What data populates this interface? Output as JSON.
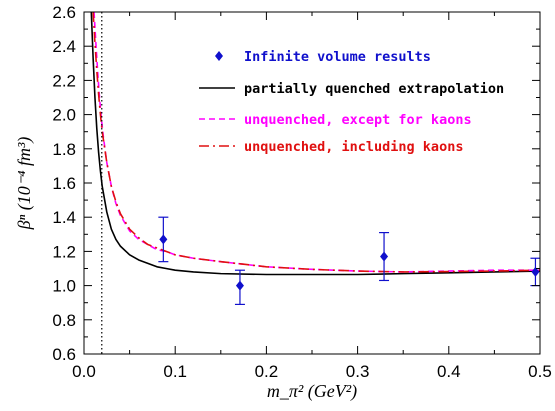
{
  "chart_data": {
    "type": "scatter",
    "xlabel": "m_π² (GeV²)",
    "ylabel": "βⁿ (10⁻⁴ fm³)",
    "xlim": [
      0.0,
      0.5
    ],
    "ylim": [
      0.6,
      2.6
    ],
    "x_ticks": [
      "0.0",
      "0.1",
      "0.2",
      "0.3",
      "0.4",
      "0.5"
    ],
    "y_ticks": [
      "0.6",
      "0.8",
      "1.0",
      "1.2",
      "1.4",
      "1.6",
      "1.8",
      "2.0",
      "2.2",
      "2.4",
      "2.6"
    ],
    "vertical_reference_line_x": 0.0195,
    "grid": false,
    "legend_position": "top-right",
    "series": [
      {
        "name": "Infinite volume results",
        "kind": "points-with-errors",
        "marker": "diamond",
        "color": "#1010cc",
        "x": [
          0.087,
          0.171,
          0.329,
          0.495
        ],
        "y": [
          1.27,
          1.0,
          1.17,
          1.08
        ],
        "y_low": [
          1.14,
          0.89,
          1.03,
          1.0
        ],
        "y_high": [
          1.4,
          1.09,
          1.31,
          1.16
        ]
      },
      {
        "name": "partially quenched extrapolation",
        "kind": "curve",
        "style": "solid",
        "color": "#000000",
        "x": [
          0.008,
          0.01,
          0.012,
          0.014,
          0.016,
          0.018,
          0.02,
          0.025,
          0.03,
          0.035,
          0.04,
          0.05,
          0.06,
          0.07,
          0.08,
          0.09,
          0.1,
          0.12,
          0.15,
          0.2,
          0.25,
          0.3,
          0.35,
          0.4,
          0.45,
          0.5
        ],
        "y": [
          2.6,
          2.33,
          2.1,
          1.92,
          1.78,
          1.67,
          1.58,
          1.43,
          1.33,
          1.27,
          1.23,
          1.18,
          1.15,
          1.13,
          1.11,
          1.1,
          1.09,
          1.08,
          1.07,
          1.065,
          1.065,
          1.065,
          1.07,
          1.075,
          1.08,
          1.085
        ]
      },
      {
        "name": "unquenched, except for kaons",
        "kind": "curve",
        "style": "dashed",
        "color": "#ff00ff",
        "x": [
          0.011,
          0.013,
          0.015,
          0.017,
          0.019,
          0.021,
          0.025,
          0.03,
          0.035,
          0.04,
          0.05,
          0.06,
          0.07,
          0.08,
          0.09,
          0.1,
          0.12,
          0.15,
          0.2,
          0.25,
          0.3,
          0.35,
          0.4,
          0.45,
          0.5
        ],
        "y": [
          2.6,
          2.42,
          2.25,
          2.1,
          1.98,
          1.88,
          1.72,
          1.58,
          1.48,
          1.41,
          1.32,
          1.27,
          1.24,
          1.21,
          1.2,
          1.18,
          1.16,
          1.14,
          1.11,
          1.095,
          1.085,
          1.08,
          1.085,
          1.09,
          1.09
        ]
      },
      {
        "name": "unquenched, including kaons",
        "kind": "curve",
        "style": "dash-dot",
        "color": "#e01010",
        "x": [
          0.01,
          0.012,
          0.014,
          0.016,
          0.018,
          0.02,
          0.025,
          0.03,
          0.035,
          0.04,
          0.05,
          0.06,
          0.07,
          0.08,
          0.09,
          0.1,
          0.12,
          0.15,
          0.2,
          0.25,
          0.3,
          0.35,
          0.4,
          0.45,
          0.5
        ],
        "y": [
          2.6,
          2.42,
          2.26,
          2.12,
          2.0,
          1.9,
          1.72,
          1.58,
          1.49,
          1.42,
          1.33,
          1.28,
          1.24,
          1.22,
          1.2,
          1.18,
          1.16,
          1.14,
          1.11,
          1.095,
          1.085,
          1.08,
          1.082,
          1.085,
          1.09
        ]
      }
    ]
  }
}
